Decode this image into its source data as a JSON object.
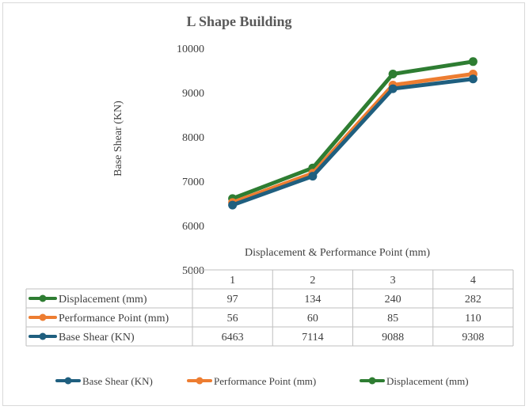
{
  "chart_data": {
    "type": "line",
    "title": "L Shape Building",
    "ylabel": "Base Shear (KN)",
    "xlabel": "Displacement & Performance Point (mm)",
    "categories": [
      "1",
      "2",
      "3",
      "4"
    ],
    "ylim": [
      5000,
      10000
    ],
    "yticks": [
      5000,
      6000,
      7000,
      8000,
      9000,
      10000
    ],
    "gridlines": false,
    "series": [
      {
        "name": "Displacement (mm)",
        "color": "#2e7d32",
        "plot_values": [
          6610,
          7300,
          9420,
          9700
        ],
        "table_values": [
          "97",
          "134",
          "240",
          "282"
        ]
      },
      {
        "name": "Performance Point (mm)",
        "color": "#ed7d31",
        "plot_values": [
          6520,
          7180,
          9170,
          9420
        ],
        "table_values": [
          "56",
          "60",
          "85",
          "110"
        ]
      },
      {
        "name": "Base Shear (KN)",
        "color": "#1f5f7f",
        "plot_values": [
          6463,
          7114,
          9088,
          9308
        ],
        "table_values": [
          "6463",
          "7114",
          "9088",
          "9308"
        ]
      }
    ],
    "legend": {
      "position": "bottom",
      "order": [
        "Base Shear (KN)",
        "Performance Point (mm)",
        "Displacement (mm)"
      ]
    }
  }
}
